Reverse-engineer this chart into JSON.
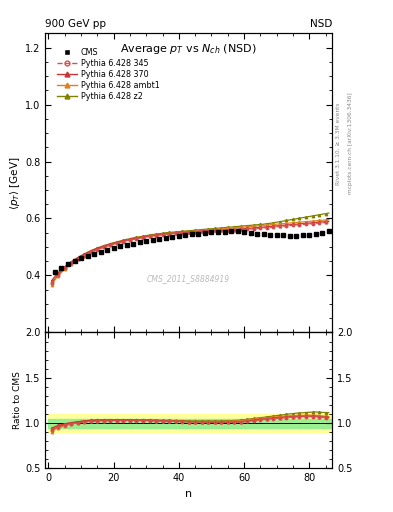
{
  "title": "Average $p_T$ vs $N_{ch}$ (NSD)",
  "xlabel": "n",
  "ylabel_main": "$\\langle p_T \\rangle$ [GeV]",
  "ylabel_ratio": "Ratio to CMS",
  "top_left_label": "900 GeV pp",
  "top_right_label": "NSD",
  "watermark": "CMS_2011_S8884919",
  "right_label1": "Rivet 3.1.10, ≥ 3.3M events",
  "right_label2": "mcplots.cern.ch [arXiv:1306.3436]",
  "ylim_main": [
    0.2,
    1.25
  ],
  "ylim_ratio": [
    0.5,
    2.0
  ],
  "yticks_main": [
    0.2,
    0.4,
    0.6,
    0.8,
    1.0,
    1.2
  ],
  "yticks_ratio": [
    0.5,
    1.0,
    1.5,
    2.0
  ],
  "xlim": [
    -1,
    87
  ],
  "xticks": [
    0,
    20,
    40,
    60,
    80
  ],
  "cms_x": [
    2,
    4,
    6,
    8,
    10,
    12,
    14,
    16,
    18,
    20,
    22,
    24,
    26,
    28,
    30,
    32,
    34,
    36,
    38,
    40,
    42,
    44,
    46,
    48,
    50,
    52,
    54,
    56,
    58,
    60,
    62,
    64,
    66,
    68,
    70,
    72,
    74,
    76,
    78,
    80,
    82,
    84,
    86
  ],
  "cms_y": [
    0.413,
    0.428,
    0.44,
    0.451,
    0.46,
    0.468,
    0.476,
    0.483,
    0.49,
    0.496,
    0.502,
    0.507,
    0.512,
    0.517,
    0.521,
    0.525,
    0.529,
    0.533,
    0.536,
    0.539,
    0.542,
    0.545,
    0.547,
    0.549,
    0.551,
    0.553,
    0.554,
    0.555,
    0.555,
    0.553,
    0.55,
    0.547,
    0.545,
    0.543,
    0.542,
    0.541,
    0.54,
    0.54,
    0.541,
    0.542,
    0.544,
    0.55,
    0.555
  ],
  "py345_x": [
    1,
    2,
    3,
    4,
    5,
    6,
    7,
    8,
    9,
    10,
    11,
    12,
    13,
    14,
    15,
    16,
    17,
    18,
    19,
    20,
    21,
    22,
    23,
    24,
    25,
    26,
    27,
    28,
    29,
    30,
    31,
    32,
    33,
    34,
    35,
    36,
    37,
    38,
    39,
    40,
    41,
    42,
    43,
    44,
    45,
    46,
    47,
    48,
    49,
    50,
    51,
    52,
    53,
    54,
    55,
    56,
    57,
    58,
    59,
    60,
    61,
    62,
    63,
    64,
    65,
    66,
    67,
    68,
    69,
    70,
    71,
    72,
    73,
    74,
    75,
    76,
    77,
    78,
    79,
    80,
    81,
    82,
    83,
    84,
    85,
    86
  ],
  "py345_y": [
    0.375,
    0.39,
    0.403,
    0.415,
    0.425,
    0.434,
    0.443,
    0.451,
    0.458,
    0.464,
    0.47,
    0.476,
    0.481,
    0.486,
    0.491,
    0.495,
    0.499,
    0.503,
    0.507,
    0.51,
    0.513,
    0.516,
    0.519,
    0.522,
    0.524,
    0.527,
    0.529,
    0.531,
    0.533,
    0.535,
    0.537,
    0.539,
    0.54,
    0.542,
    0.543,
    0.545,
    0.546,
    0.547,
    0.548,
    0.549,
    0.55,
    0.551,
    0.552,
    0.553,
    0.554,
    0.555,
    0.556,
    0.556,
    0.557,
    0.558,
    0.558,
    0.559,
    0.559,
    0.56,
    0.56,
    0.561,
    0.561,
    0.561,
    0.562,
    0.562,
    0.563,
    0.563,
    0.564,
    0.565,
    0.566,
    0.567,
    0.568,
    0.569,
    0.57,
    0.571,
    0.572,
    0.573,
    0.574,
    0.575,
    0.576,
    0.577,
    0.578,
    0.579,
    0.58,
    0.581,
    0.582,
    0.583,
    0.584,
    0.585,
    0.586,
    0.587
  ],
  "py370_x": [
    1,
    2,
    3,
    4,
    5,
    6,
    7,
    8,
    9,
    10,
    11,
    12,
    13,
    14,
    15,
    16,
    17,
    18,
    19,
    20,
    21,
    22,
    23,
    24,
    25,
    26,
    27,
    28,
    29,
    30,
    31,
    32,
    33,
    34,
    35,
    36,
    37,
    38,
    39,
    40,
    41,
    42,
    43,
    44,
    45,
    46,
    47,
    48,
    49,
    50,
    51,
    52,
    53,
    54,
    55,
    56,
    57,
    58,
    59,
    60,
    61,
    62,
    63,
    64,
    65,
    66,
    67,
    68,
    69,
    70,
    71,
    72,
    73,
    74,
    75,
    76,
    77,
    78,
    79,
    80,
    81,
    82,
    83,
    84,
    85,
    86
  ],
  "py370_y": [
    0.382,
    0.397,
    0.41,
    0.421,
    0.431,
    0.44,
    0.448,
    0.456,
    0.463,
    0.469,
    0.475,
    0.481,
    0.486,
    0.491,
    0.495,
    0.499,
    0.503,
    0.507,
    0.51,
    0.513,
    0.516,
    0.519,
    0.522,
    0.524,
    0.527,
    0.529,
    0.531,
    0.533,
    0.535,
    0.537,
    0.539,
    0.54,
    0.542,
    0.543,
    0.545,
    0.546,
    0.547,
    0.548,
    0.549,
    0.55,
    0.551,
    0.552,
    0.553,
    0.554,
    0.554,
    0.555,
    0.556,
    0.556,
    0.557,
    0.557,
    0.558,
    0.558,
    0.559,
    0.559,
    0.56,
    0.56,
    0.561,
    0.562,
    0.563,
    0.564,
    0.565,
    0.566,
    0.567,
    0.568,
    0.569,
    0.57,
    0.571,
    0.572,
    0.573,
    0.574,
    0.575,
    0.576,
    0.577,
    0.578,
    0.579,
    0.58,
    0.581,
    0.582,
    0.583,
    0.584,
    0.585,
    0.586,
    0.587,
    0.588,
    0.589,
    0.59
  ],
  "pyambt1_x": [
    1,
    2,
    3,
    4,
    5,
    6,
    7,
    8,
    9,
    10,
    11,
    12,
    13,
    14,
    15,
    16,
    17,
    18,
    19,
    20,
    21,
    22,
    23,
    24,
    25,
    26,
    27,
    28,
    29,
    30,
    31,
    32,
    33,
    34,
    35,
    36,
    37,
    38,
    39,
    40,
    41,
    42,
    43,
    44,
    45,
    46,
    47,
    48,
    49,
    50,
    51,
    52,
    53,
    54,
    55,
    56,
    57,
    58,
    59,
    60,
    61,
    62,
    63,
    64,
    65,
    66,
    67,
    68,
    69,
    70,
    71,
    72,
    73,
    74,
    75,
    76,
    77,
    78,
    79,
    80,
    81,
    82,
    83,
    84,
    85,
    86
  ],
  "pyambt1_y": [
    0.368,
    0.385,
    0.399,
    0.411,
    0.422,
    0.432,
    0.441,
    0.449,
    0.457,
    0.464,
    0.47,
    0.476,
    0.482,
    0.487,
    0.492,
    0.496,
    0.5,
    0.504,
    0.508,
    0.511,
    0.515,
    0.518,
    0.521,
    0.523,
    0.526,
    0.528,
    0.531,
    0.533,
    0.535,
    0.537,
    0.539,
    0.54,
    0.542,
    0.543,
    0.545,
    0.546,
    0.547,
    0.548,
    0.549,
    0.55,
    0.551,
    0.552,
    0.553,
    0.554,
    0.555,
    0.556,
    0.557,
    0.558,
    0.559,
    0.56,
    0.561,
    0.562,
    0.563,
    0.564,
    0.565,
    0.566,
    0.567,
    0.568,
    0.569,
    0.57,
    0.571,
    0.572,
    0.573,
    0.574,
    0.575,
    0.576,
    0.577,
    0.578,
    0.579,
    0.58,
    0.581,
    0.582,
    0.583,
    0.584,
    0.585,
    0.586,
    0.587,
    0.588,
    0.589,
    0.59,
    0.591,
    0.592,
    0.593,
    0.594,
    0.595,
    0.596
  ],
  "pyz2_x": [
    1,
    2,
    3,
    4,
    5,
    6,
    7,
    8,
    9,
    10,
    11,
    12,
    13,
    14,
    15,
    16,
    17,
    18,
    19,
    20,
    21,
    22,
    23,
    24,
    25,
    26,
    27,
    28,
    29,
    30,
    31,
    32,
    33,
    34,
    35,
    36,
    37,
    38,
    39,
    40,
    41,
    42,
    43,
    44,
    45,
    46,
    47,
    48,
    49,
    50,
    51,
    52,
    53,
    54,
    55,
    56,
    57,
    58,
    59,
    60,
    61,
    62,
    63,
    64,
    65,
    66,
    67,
    68,
    69,
    70,
    71,
    72,
    73,
    74,
    75,
    76,
    77,
    78,
    79,
    80,
    81,
    82,
    83,
    84,
    85,
    86
  ],
  "pyz2_y": [
    0.373,
    0.389,
    0.403,
    0.416,
    0.427,
    0.437,
    0.446,
    0.454,
    0.462,
    0.469,
    0.475,
    0.481,
    0.487,
    0.492,
    0.496,
    0.501,
    0.505,
    0.508,
    0.512,
    0.515,
    0.518,
    0.521,
    0.524,
    0.527,
    0.529,
    0.532,
    0.534,
    0.536,
    0.538,
    0.54,
    0.542,
    0.544,
    0.545,
    0.547,
    0.548,
    0.55,
    0.551,
    0.552,
    0.553,
    0.554,
    0.555,
    0.556,
    0.557,
    0.558,
    0.559,
    0.56,
    0.561,
    0.562,
    0.563,
    0.564,
    0.565,
    0.566,
    0.567,
    0.568,
    0.569,
    0.57,
    0.571,
    0.572,
    0.573,
    0.574,
    0.575,
    0.576,
    0.577,
    0.578,
    0.579,
    0.58,
    0.582,
    0.583,
    0.585,
    0.587,
    0.589,
    0.591,
    0.593,
    0.595,
    0.597,
    0.599,
    0.601,
    0.603,
    0.605,
    0.607,
    0.609,
    0.611,
    0.613,
    0.615,
    0.617,
    0.619
  ],
  "color_345": "#d45050",
  "color_370": "#cc3333",
  "color_ambt1": "#e08020",
  "color_z2": "#808000",
  "color_cms": "#000000",
  "color_band_inner": "#90ee90",
  "color_band_outer": "#ffff88",
  "ratio_ref_line": 1.0
}
